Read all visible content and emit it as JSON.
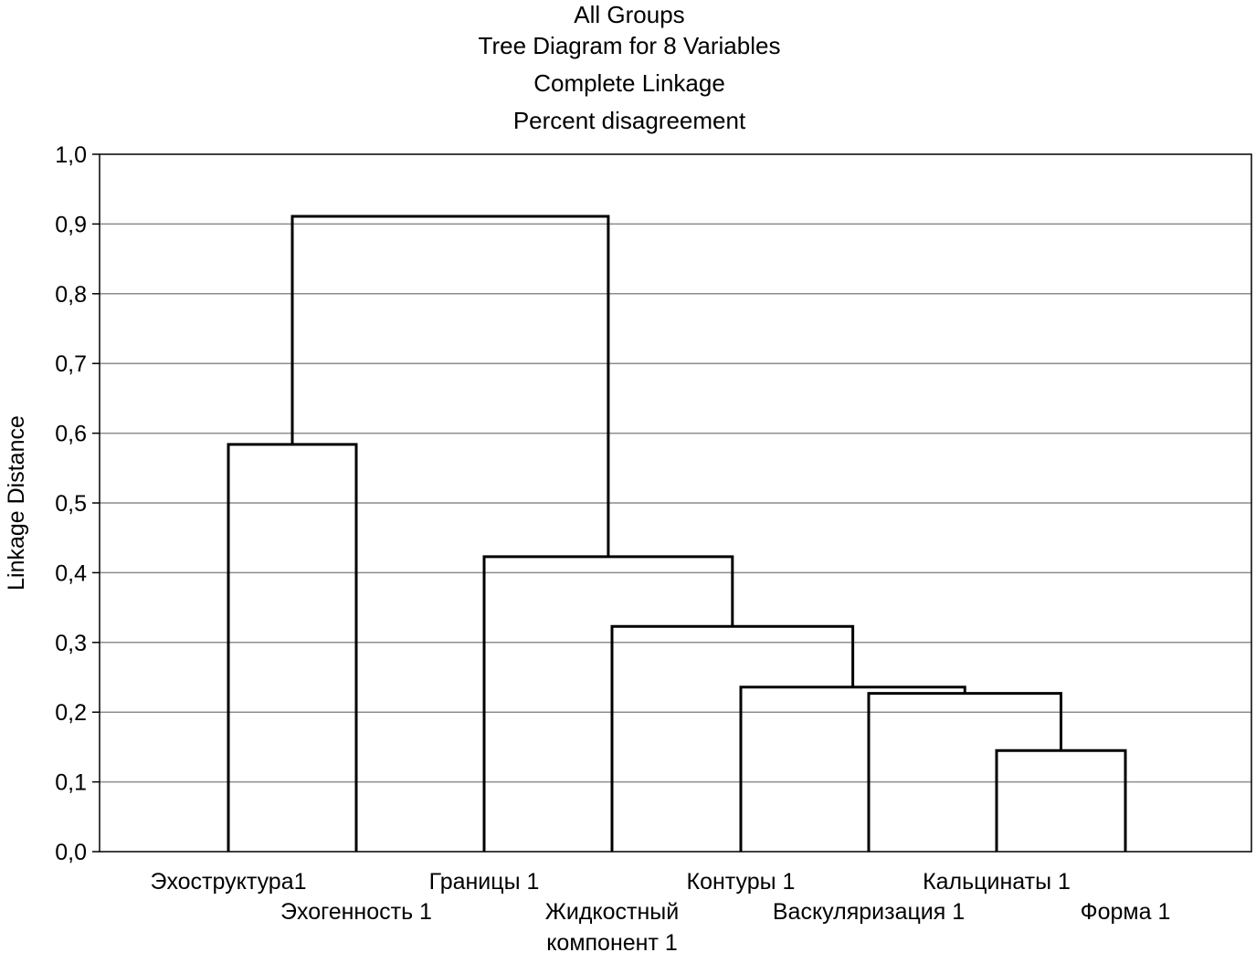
{
  "chart_data": {
    "type": "dendrogram",
    "title": [
      "All Groups",
      "Tree Diagram for 8 Variables",
      "Complete Linkage",
      "Percent disagreement"
    ],
    "xlabel": "",
    "ylabel": "Linkage Distance",
    "ylim": [
      0,
      1.0
    ],
    "y_ticks": [
      "0,0",
      "0,1",
      "0,2",
      "0,3",
      "0,4",
      "0,5",
      "0,6",
      "0,7",
      "0,8",
      "0,9",
      "1,0"
    ],
    "grid": true,
    "leaves": [
      {
        "label": [
          "Эхоструктура1"
        ]
      },
      {
        "label": [
          "Эхогенность 1"
        ]
      },
      {
        "label": [
          "Границы 1"
        ]
      },
      {
        "label": [
          "Жидкостный",
          "компонент 1"
        ]
      },
      {
        "label": [
          "Контуры 1"
        ]
      },
      {
        "label": [
          "Васкуляризация 1"
        ]
      },
      {
        "label": [
          "Кальцинаты 1"
        ]
      },
      {
        "label": [
          "Форма 1"
        ]
      }
    ],
    "merges": [
      {
        "left": "L6",
        "right": "L7",
        "height": 0.145
      },
      {
        "left": "L5",
        "right": "M0",
        "height": 0.227
      },
      {
        "left": "L4",
        "right": "M1",
        "height": 0.236
      },
      {
        "left": "L3",
        "right": "M2",
        "height": 0.323
      },
      {
        "left": "L2",
        "right": "M3",
        "height": 0.423
      },
      {
        "left": "L0",
        "right": "L1",
        "height": 0.584
      },
      {
        "left": "M5",
        "right": "M4",
        "height": 0.911
      }
    ]
  }
}
